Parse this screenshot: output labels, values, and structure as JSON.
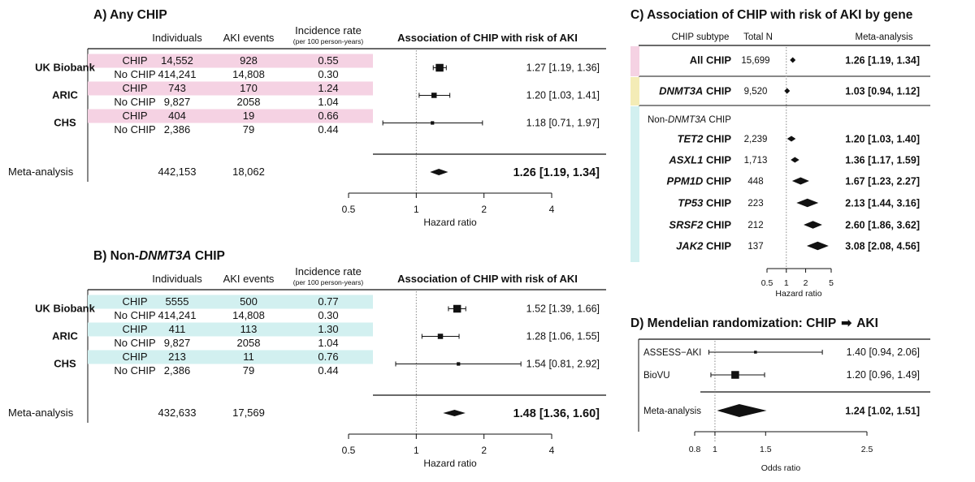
{
  "colors": {
    "pink": "#f5d2e3",
    "teal": "#d2f0f0",
    "yellow": "#f4ecb6",
    "black": "#111111"
  },
  "chart_data": [
    {
      "id": "A",
      "type": "forest",
      "title": "A) Any CHIP",
      "col_headers": {
        "individuals": "Individuals",
        "events": "AKI events",
        "rate": "Incidence rate",
        "rate_sub": "(per 100 person-years)",
        "plot": "Association of CHIP with risk of AKI"
      },
      "xlabel": "Hazard ratio",
      "xscale": "log",
      "xlim": [
        0.5,
        4
      ],
      "ticks": [
        "0.5",
        "1",
        "2",
        "4"
      ],
      "ref_line": 1,
      "cohorts": [
        {
          "name": "UK Biobank",
          "rows": [
            {
              "group": "CHIP",
              "n": "14,552",
              "events": "928",
              "rate": "0.55"
            },
            {
              "group": "No CHIP",
              "n": "414,241",
              "events": "14,808",
              "rate": "0.30"
            }
          ],
          "hr": 1.27,
          "lo": 1.19,
          "hi": 1.36,
          "label": "1.27 [1.19, 1.36]",
          "weight": 1.0
        },
        {
          "name": "ARIC",
          "rows": [
            {
              "group": "CHIP",
              "n": "743",
              "events": "170",
              "rate": "1.24"
            },
            {
              "group": "No CHIP",
              "n": "9,827",
              "events": "2058",
              "rate": "1.04"
            }
          ],
          "hr": 1.2,
          "lo": 1.03,
          "hi": 1.41,
          "label": "1.20 [1.03, 1.41]",
          "weight": 0.6
        },
        {
          "name": "CHS",
          "rows": [
            {
              "group": "CHIP",
              "n": "404",
              "events": "19",
              "rate": "0.66"
            },
            {
              "group": "No CHIP",
              "n": "2,386",
              "events": "79",
              "rate": "0.44"
            }
          ],
          "hr": 1.18,
          "lo": 0.71,
          "hi": 1.97,
          "label": "1.18 [0.71, 1.97]",
          "weight": 0.3
        }
      ],
      "meta": {
        "name": "Meta-analysis",
        "n": "442,153",
        "events": "18,062",
        "hr": 1.26,
        "lo": 1.19,
        "hi": 1.34,
        "label": "1.26 [1.19, 1.34]"
      }
    },
    {
      "id": "B",
      "type": "forest",
      "title_prefix": "B) Non-",
      "title_italic": "DNMT3A",
      "title_suffix": " CHIP",
      "col_headers": {
        "individuals": "Individuals",
        "events": "AKI events",
        "rate": "Incidence rate",
        "rate_sub": "(per 100 person-years)",
        "plot": "Association of CHIP with risk of AKI"
      },
      "xlabel": "Hazard ratio",
      "xscale": "log",
      "xlim": [
        0.5,
        4
      ],
      "ticks": [
        "0.5",
        "1",
        "2",
        "4"
      ],
      "ref_line": 1,
      "cohorts": [
        {
          "name": "UK Biobank",
          "rows": [
            {
              "group": "CHIP",
              "n": "5555",
              "events": "500",
              "rate": "0.77"
            },
            {
              "group": "No CHIP",
              "n": "414,241",
              "events": "14,808",
              "rate": "0.30"
            }
          ],
          "hr": 1.52,
          "lo": 1.39,
          "hi": 1.66,
          "label": "1.52 [1.39, 1.66]",
          "weight": 1.0
        },
        {
          "name": "ARIC",
          "rows": [
            {
              "group": "CHIP",
              "n": "411",
              "events": "113",
              "rate": "1.30"
            },
            {
              "group": "No CHIP",
              "n": "9,827",
              "events": "2058",
              "rate": "1.04"
            }
          ],
          "hr": 1.28,
          "lo": 1.06,
          "hi": 1.55,
          "label": "1.28 [1.06, 1.55]",
          "weight": 0.6
        },
        {
          "name": "CHS",
          "rows": [
            {
              "group": "CHIP",
              "n": "213",
              "events": "11",
              "rate": "0.76"
            },
            {
              "group": "No CHIP",
              "n": "2,386",
              "events": "79",
              "rate": "0.44"
            }
          ],
          "hr": 1.54,
          "lo": 0.81,
          "hi": 2.92,
          "label": "1.54 [0.81, 2.92]",
          "weight": 0.3
        }
      ],
      "meta": {
        "name": "Meta-analysis",
        "n": "432,633",
        "events": "17,569",
        "hr": 1.48,
        "lo": 1.36,
        "hi": 1.6,
        "label": "1.48 [1.36, 1.60]"
      }
    },
    {
      "id": "C",
      "type": "forest",
      "title": "C) Association of CHIP with risk of AKI by gene",
      "col_headers": {
        "subtype": "CHIP subtype",
        "total_n": "Total N",
        "meta": "Meta-analysis"
      },
      "section_label_prefix": "Non-",
      "section_label_italic": "DNMT3A",
      "section_label_suffix": " CHIP",
      "xlabel": "Hazard ratio",
      "xscale": "log",
      "xlim": [
        0.5,
        5
      ],
      "ticks": [
        "0.5",
        "1",
        "2",
        "5"
      ],
      "ref_line": 1,
      "rows": [
        {
          "gene": "All",
          "gene_italic": false,
          "suffix": " CHIP",
          "n": "15,699",
          "hr": 1.26,
          "lo": 1.19,
          "hi": 1.34,
          "label": "1.26 [1.19, 1.34]",
          "band": "pink"
        },
        {
          "gene": "DNMT3A",
          "gene_italic": true,
          "suffix": " CHIP",
          "n": "9,520",
          "hr": 1.03,
          "lo": 0.94,
          "hi": 1.12,
          "label": "1.03 [0.94, 1.12]",
          "band": "yellow"
        },
        {
          "gene": "TET2",
          "gene_italic": true,
          "suffix": " CHIP",
          "n": "2,239",
          "hr": 1.2,
          "lo": 1.03,
          "hi": 1.4,
          "label": "1.20 [1.03, 1.40]",
          "band": "teal"
        },
        {
          "gene": "ASXL1",
          "gene_italic": true,
          "suffix": " CHIP",
          "n": "1,713",
          "hr": 1.36,
          "lo": 1.17,
          "hi": 1.59,
          "label": "1.36 [1.17, 1.59]",
          "band": "teal"
        },
        {
          "gene": "PPM1D",
          "gene_italic": true,
          "suffix": " CHIP",
          "n": "448",
          "hr": 1.67,
          "lo": 1.23,
          "hi": 2.27,
          "label": "1.67 [1.23, 2.27]",
          "band": "teal"
        },
        {
          "gene": "TP53",
          "gene_italic": true,
          "suffix": " CHIP",
          "n": "223",
          "hr": 2.13,
          "lo": 1.44,
          "hi": 3.16,
          "label": "2.13 [1.44, 3.16]",
          "band": "teal"
        },
        {
          "gene": "SRSF2",
          "gene_italic": true,
          "suffix": " CHIP",
          "n": "212",
          "hr": 2.6,
          "lo": 1.86,
          "hi": 3.62,
          "label": "2.60 [1.86, 3.62]",
          "band": "teal"
        },
        {
          "gene": "JAK2",
          "gene_italic": true,
          "suffix": " CHIP",
          "n": "137",
          "hr": 3.08,
          "lo": 2.08,
          "hi": 4.56,
          "label": "3.08 [2.08, 4.56]",
          "band": "teal"
        }
      ]
    },
    {
      "id": "D",
      "type": "forest",
      "title": "D) Mendelian randomization: CHIP",
      "title_arrow": "➡",
      "title_end": "AKI",
      "xlabel": "Odds ratio",
      "xscale": "linear",
      "xlim": [
        0.8,
        2.5
      ],
      "ticks": [
        "0.8",
        "1",
        "1.5",
        "2.5"
      ],
      "ref_line": 1,
      "rows": [
        {
          "name": "ASSESS−AKI",
          "or": 1.4,
          "lo": 0.94,
          "hi": 2.06,
          "label": "1.40 [0.94, 2.06]",
          "weight": 0.2
        },
        {
          "name": "BioVU",
          "or": 1.2,
          "lo": 0.96,
          "hi": 1.49,
          "label": "1.20 [0.96, 1.49]",
          "weight": 1.0
        }
      ],
      "meta": {
        "name": "Meta-analysis",
        "or": 1.24,
        "lo": 1.02,
        "hi": 1.51,
        "label": "1.24 [1.02, 1.51]"
      }
    }
  ]
}
